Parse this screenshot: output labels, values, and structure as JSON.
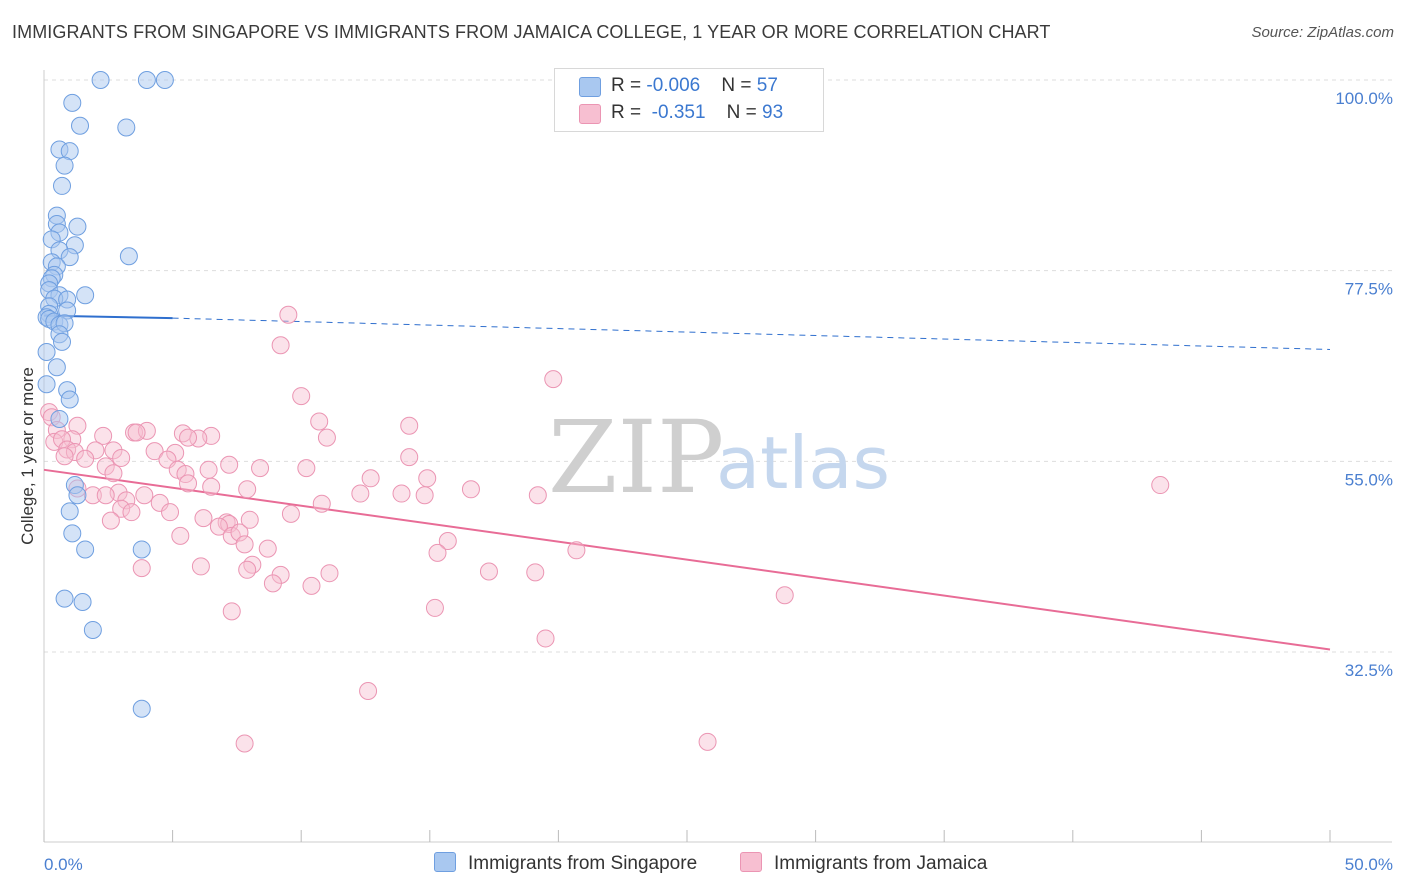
{
  "title": "IMMIGRANTS FROM SINGAPORE VS IMMIGRANTS FROM JAMAICA COLLEGE, 1 YEAR OR MORE CORRELATION CHART",
  "source": "Source: ZipAtlas.com",
  "watermark": {
    "zip": "ZIP",
    "atlas": "atlas"
  },
  "legend": {
    "rows": [
      {
        "r_label": "R = ",
        "r_value": "-0.006",
        "n_label": "N = ",
        "n_value": "57"
      },
      {
        "r_label": "R = ",
        "r_value": " -0.351",
        "n_label": "N = ",
        "n_value": "93"
      }
    ]
  },
  "colors": {
    "singapore_fill": "#a9c8f0",
    "singapore_stroke": "#6f9fe0",
    "singapore_line": "#2f6fce",
    "jamaica_fill": "#f7bfd1",
    "jamaica_stroke": "#eb95b3",
    "jamaica_line": "#e86c96",
    "tick_text": "#4a7fd0",
    "grid": "#dddddd"
  },
  "chart_data": {
    "type": "scatter",
    "title": "IMMIGRANTS FROM SINGAPORE VS IMMIGRANTS FROM JAMAICA COLLEGE, 1 YEAR OR MORE CORRELATION CHART",
    "xlabel": "",
    "ylabel": "College, 1 year or more",
    "xlim": [
      0,
      50
    ],
    "ylim": [
      12,
      102
    ],
    "x_tick_labels": [
      "0.0%",
      "50.0%"
    ],
    "y_ticks": [
      32.5,
      55.0,
      77.5,
      100.0
    ],
    "y_tick_labels": [
      "32.5%",
      "55.0%",
      "77.5%",
      "100.0%"
    ],
    "grid": true,
    "series": [
      {
        "name": "Immigrants from Singapore",
        "r": -0.006,
        "n": 57,
        "trend": {
          "x": [
            0,
            5
          ],
          "y": [
            72.2,
            71.9
          ],
          "dashed_extension_to": [
            50,
            68.2
          ]
        },
        "points": [
          [
            2.2,
            100.0
          ],
          [
            4.0,
            100.0
          ],
          [
            4.7,
            100.0
          ],
          [
            1.1,
            97.3
          ],
          [
            1.4,
            94.6
          ],
          [
            3.2,
            94.4
          ],
          [
            0.6,
            91.8
          ],
          [
            1.0,
            91.6
          ],
          [
            0.8,
            89.9
          ],
          [
            0.7,
            87.5
          ],
          [
            0.5,
            84.0
          ],
          [
            0.5,
            83.0
          ],
          [
            1.3,
            82.7
          ],
          [
            0.6,
            82.0
          ],
          [
            0.3,
            81.2
          ],
          [
            1.2,
            80.5
          ],
          [
            0.6,
            79.9
          ],
          [
            1.0,
            79.1
          ],
          [
            3.3,
            79.2
          ],
          [
            0.3,
            78.5
          ],
          [
            0.5,
            78.0
          ],
          [
            0.4,
            77.0
          ],
          [
            0.3,
            76.6
          ],
          [
            0.2,
            76.0
          ],
          [
            0.2,
            75.2
          ],
          [
            0.6,
            74.6
          ],
          [
            1.6,
            74.6
          ],
          [
            0.4,
            74.2
          ],
          [
            0.9,
            74.1
          ],
          [
            0.2,
            73.3
          ],
          [
            0.9,
            72.8
          ],
          [
            0.2,
            72.4
          ],
          [
            0.1,
            72.0
          ],
          [
            0.2,
            71.8
          ],
          [
            0.4,
            71.5
          ],
          [
            0.6,
            71.1
          ],
          [
            0.8,
            71.3
          ],
          [
            0.6,
            70.0
          ],
          [
            0.7,
            69.1
          ],
          [
            0.1,
            67.9
          ],
          [
            0.5,
            66.1
          ],
          [
            0.1,
            64.1
          ],
          [
            0.9,
            63.4
          ],
          [
            1.0,
            62.3
          ],
          [
            0.6,
            60.0
          ],
          [
            1.2,
            52.2
          ],
          [
            1.3,
            51.0
          ],
          [
            1.0,
            49.1
          ],
          [
            1.1,
            46.5
          ],
          [
            1.6,
            44.6
          ],
          [
            3.8,
            44.6
          ],
          [
            0.8,
            38.8
          ],
          [
            1.5,
            38.4
          ],
          [
            1.9,
            35.1
          ],
          [
            3.8,
            25.8
          ]
        ]
      },
      {
        "name": "Immigrants from Jamaica",
        "r": -0.351,
        "n": 93,
        "trend": {
          "x": [
            0,
            50
          ],
          "y": [
            54.0,
            32.8
          ]
        },
        "points": [
          [
            9.5,
            72.3
          ],
          [
            9.2,
            68.7
          ],
          [
            19.8,
            64.7
          ],
          [
            10.0,
            62.7
          ],
          [
            0.2,
            60.8
          ],
          [
            10.7,
            59.7
          ],
          [
            0.3,
            60.2
          ],
          [
            1.3,
            59.2
          ],
          [
            14.2,
            59.2
          ],
          [
            3.5,
            58.4
          ],
          [
            0.5,
            58.7
          ],
          [
            1.1,
            57.6
          ],
          [
            0.4,
            57.3
          ],
          [
            0.7,
            57.6
          ],
          [
            4.0,
            58.6
          ],
          [
            3.6,
            58.4
          ],
          [
            5.4,
            58.3
          ],
          [
            6.5,
            58.0
          ],
          [
            2.3,
            58.0
          ],
          [
            6.0,
            57.7
          ],
          [
            5.6,
            57.8
          ],
          [
            11.0,
            57.8
          ],
          [
            0.9,
            56.4
          ],
          [
            1.2,
            56.1
          ],
          [
            0.8,
            55.6
          ],
          [
            2.0,
            56.3
          ],
          [
            2.7,
            56.3
          ],
          [
            4.3,
            56.2
          ],
          [
            5.1,
            56.0
          ],
          [
            14.2,
            55.5
          ],
          [
            1.6,
            55.3
          ],
          [
            3.0,
            55.4
          ],
          [
            4.8,
            55.2
          ],
          [
            7.2,
            54.6
          ],
          [
            2.4,
            54.4
          ],
          [
            5.2,
            54.0
          ],
          [
            6.4,
            54.0
          ],
          [
            8.4,
            54.2
          ],
          [
            10.2,
            54.2
          ],
          [
            5.5,
            53.5
          ],
          [
            2.7,
            53.6
          ],
          [
            12.7,
            53.0
          ],
          [
            14.9,
            53.0
          ],
          [
            5.6,
            52.4
          ],
          [
            6.5,
            52.0
          ],
          [
            1.3,
            51.8
          ],
          [
            7.9,
            51.7
          ],
          [
            2.9,
            51.3
          ],
          [
            3.9,
            51.0
          ],
          [
            16.6,
            51.7
          ],
          [
            12.3,
            51.2
          ],
          [
            13.9,
            51.2
          ],
          [
            14.8,
            51.0
          ],
          [
            19.2,
            51.0
          ],
          [
            43.4,
            52.2
          ],
          [
            1.9,
            51.0
          ],
          [
            2.4,
            51.0
          ],
          [
            3.2,
            50.4
          ],
          [
            4.5,
            50.1
          ],
          [
            10.8,
            50.0
          ],
          [
            3.0,
            49.4
          ],
          [
            3.4,
            49.0
          ],
          [
            4.9,
            49.0
          ],
          [
            6.2,
            48.3
          ],
          [
            9.6,
            48.8
          ],
          [
            2.6,
            48.0
          ],
          [
            7.1,
            47.8
          ],
          [
            7.2,
            47.6
          ],
          [
            6.8,
            47.3
          ],
          [
            5.3,
            46.2
          ],
          [
            7.3,
            46.2
          ],
          [
            7.6,
            46.6
          ],
          [
            8.0,
            48.1
          ],
          [
            7.8,
            45.2
          ],
          [
            15.7,
            45.6
          ],
          [
            8.7,
            44.7
          ],
          [
            15.3,
            44.2
          ],
          [
            20.7,
            44.5
          ],
          [
            6.1,
            42.6
          ],
          [
            8.1,
            42.8
          ],
          [
            11.1,
            41.8
          ],
          [
            7.9,
            42.2
          ],
          [
            3.8,
            42.4
          ],
          [
            17.3,
            42.0
          ],
          [
            9.2,
            41.6
          ],
          [
            19.1,
            41.9
          ],
          [
            10.4,
            40.3
          ],
          [
            8.9,
            40.6
          ],
          [
            28.8,
            39.2
          ],
          [
            15.2,
            37.7
          ],
          [
            7.3,
            37.3
          ],
          [
            19.5,
            34.1
          ],
          [
            12.6,
            27.9
          ],
          [
            7.8,
            21.7
          ],
          [
            25.8,
            21.9
          ]
        ]
      }
    ]
  }
}
